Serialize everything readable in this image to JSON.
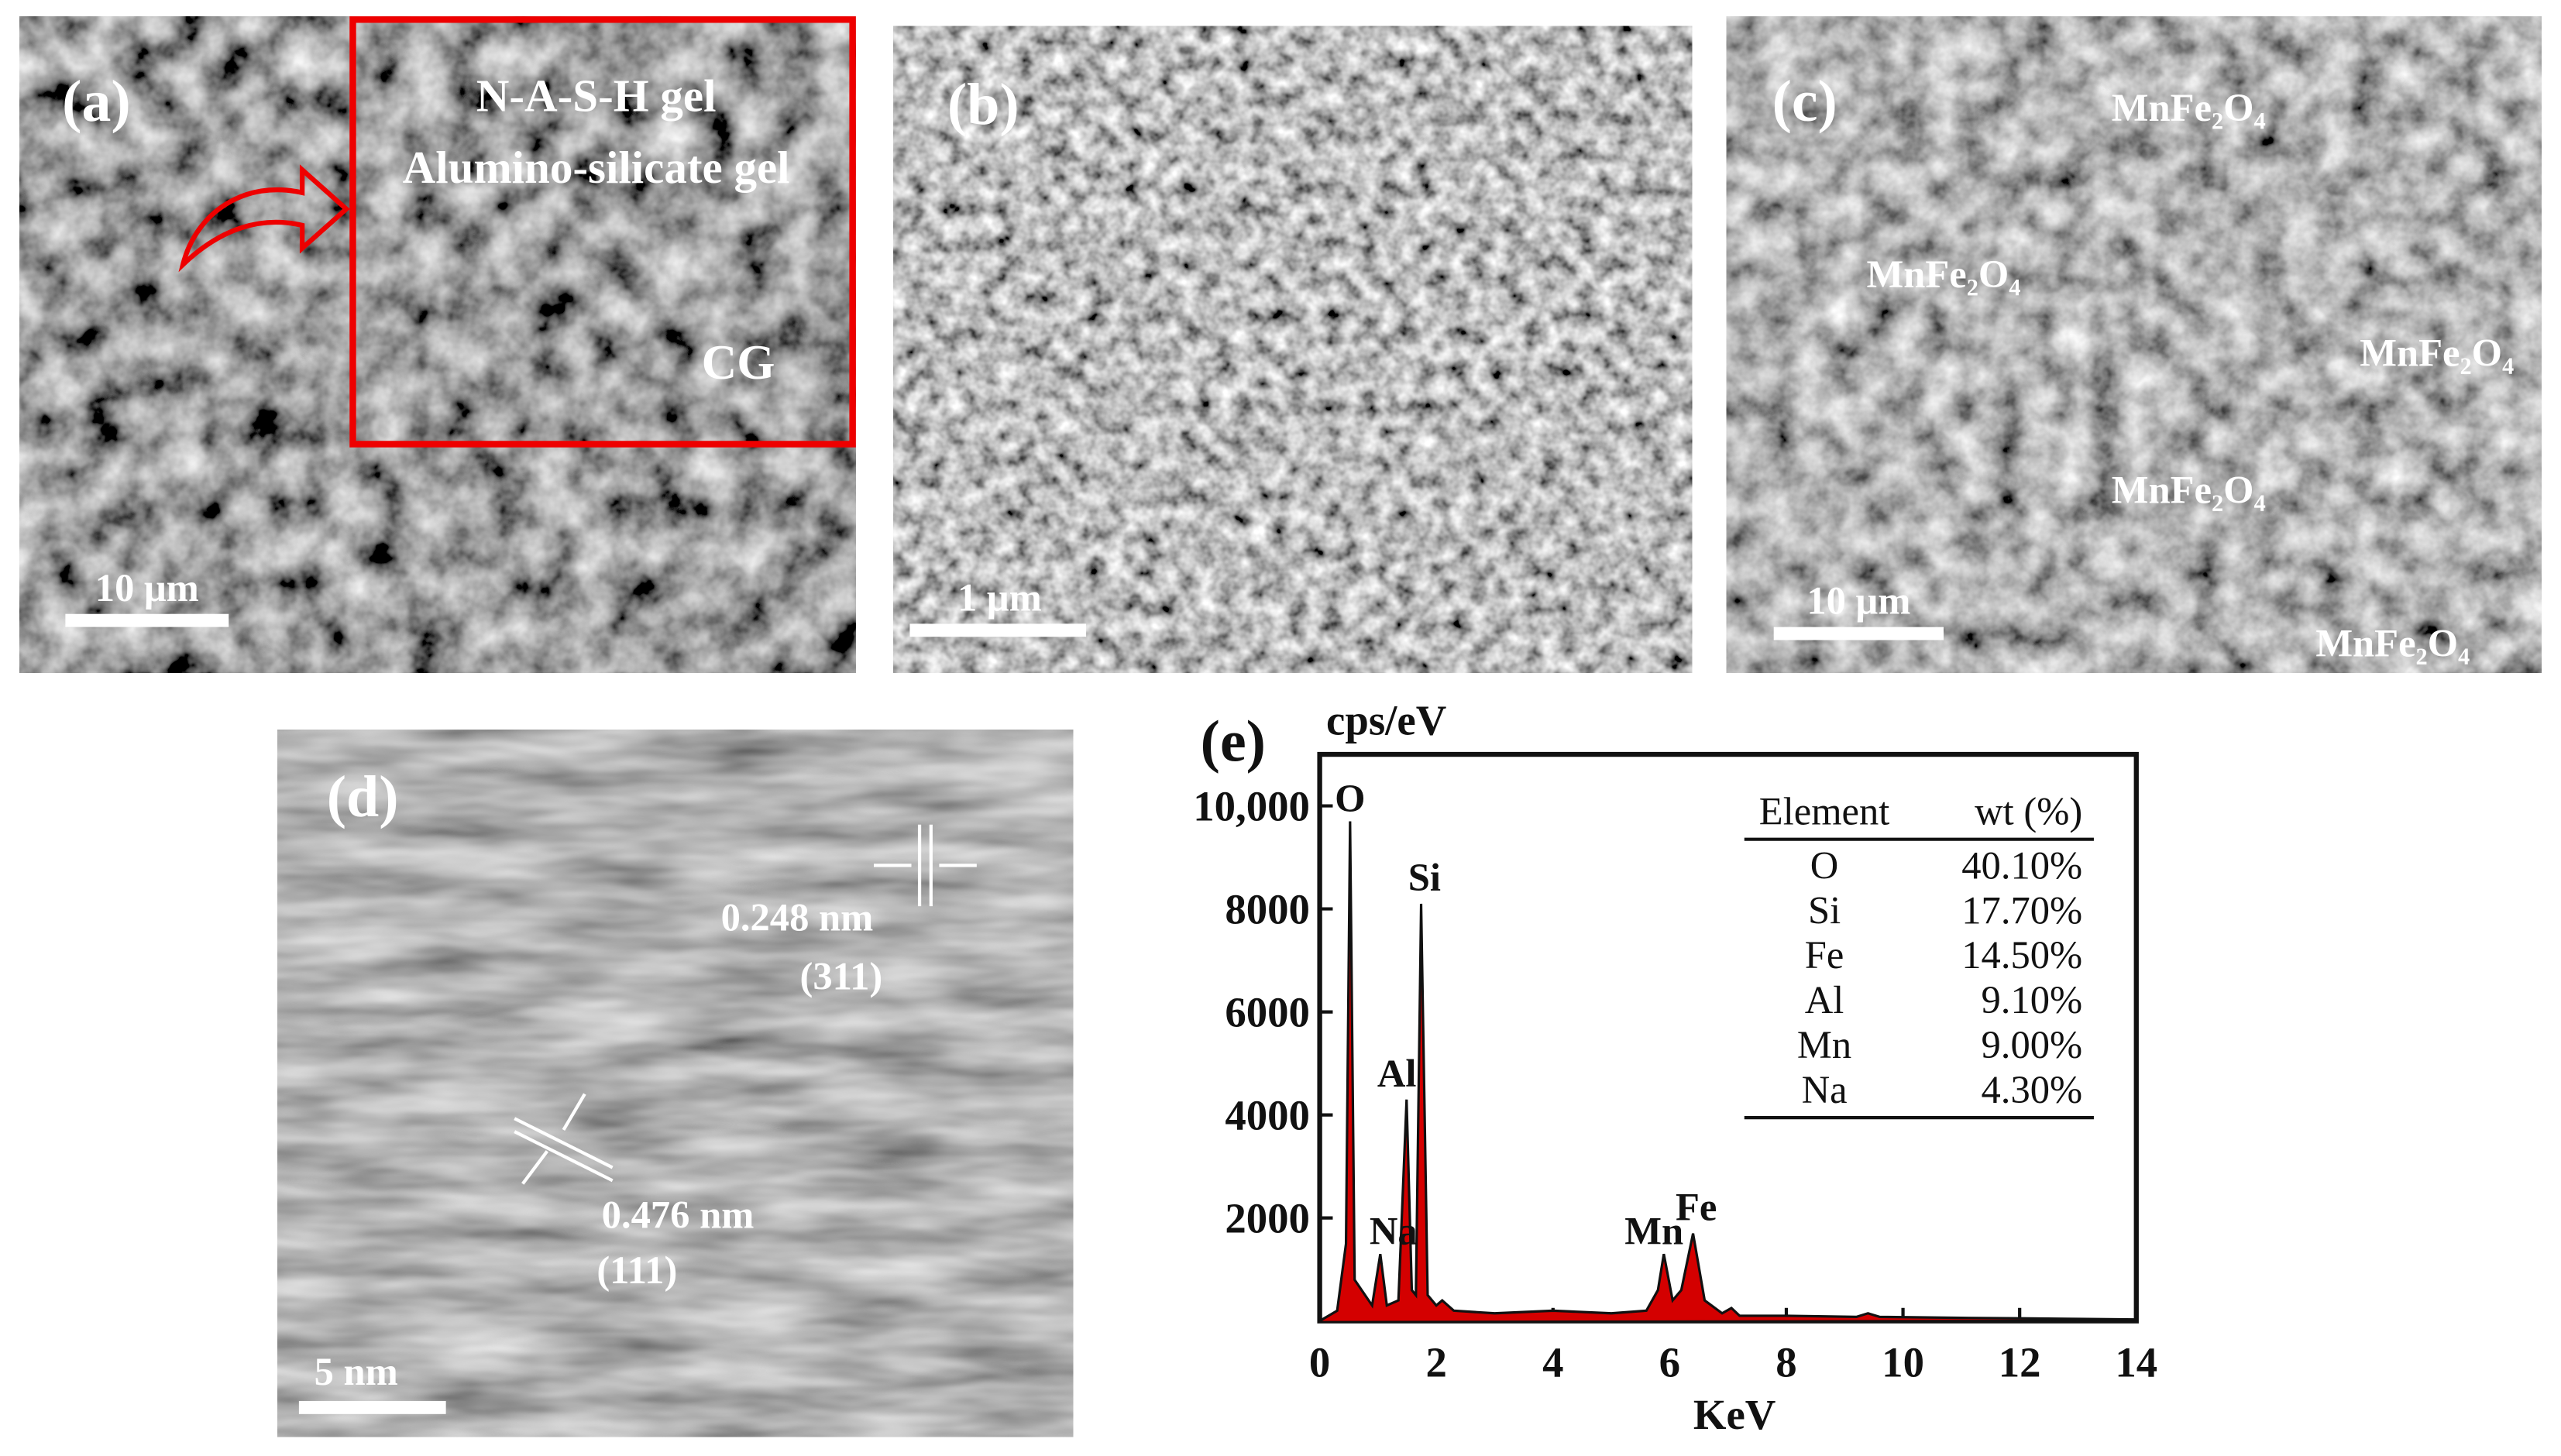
{
  "panels": {
    "a": {
      "label": "(a)",
      "gel_labels": [
        "N-A-S-H gel",
        "Alumino-silicate gel"
      ],
      "phase": "CG",
      "scale_bar": "10 μm"
    },
    "b": {
      "label": "(b)",
      "scale_bar": "1 μm"
    },
    "c": {
      "label": "(c)",
      "phases": [
        "MnFe₂O₄",
        "MnFe₂O₄",
        "MnFe₂O₄",
        "MnFe₂O₄",
        "MnFe₂O₄"
      ],
      "scale_bar": "10 μm"
    },
    "d": {
      "label": "(d)",
      "fringes": [
        {
          "spacing": "0.248 nm",
          "plane": "(311)"
        },
        {
          "spacing": "0.476 nm",
          "plane": "(111)"
        }
      ],
      "scale_bar": "5 nm"
    }
  },
  "chart_data": {
    "type": "line",
    "label": "(e)",
    "y_label": "cps/eV",
    "x_label": "KeV",
    "color": "#d40000",
    "x": [
      0,
      0.3,
      0.45,
      0.52,
      0.6,
      0.9,
      1.04,
      1.15,
      1.35,
      1.49,
      1.58,
      1.65,
      1.74,
      1.85,
      2.0,
      2.1,
      2.3,
      3,
      4,
      5,
      5.6,
      5.8,
      5.9,
      6.05,
      6.2,
      6.4,
      6.6,
      6.9,
      7.06,
      7.2,
      8,
      9.2,
      9.4,
      9.6,
      11,
      12,
      13,
      14
    ],
    "values": [
      0,
      200,
      1500,
      9700,
      800,
      300,
      1300,
      300,
      400,
      4300,
      600,
      500,
      8100,
      500,
      300,
      400,
      200,
      150,
      200,
      150,
      200,
      600,
      1300,
      400,
      600,
      1700,
      400,
      150,
      250,
      100,
      100,
      80,
      150,
      80,
      60,
      50,
      40,
      30
    ],
    "annotations": [
      "O",
      "Si",
      "Al",
      "Na",
      "Mn",
      "Fe"
    ],
    "xlim": [
      0,
      14
    ],
    "xticks": [
      0,
      2,
      4,
      6,
      8,
      10,
      12,
      14
    ],
    "ylim": [
      0,
      11000
    ],
    "yticks": [
      2000,
      4000,
      6000,
      8000,
      {
        "value": 10000,
        "label": "10,000"
      }
    ],
    "table": {
      "header": [
        "Element",
        "wt (%)"
      ],
      "rows": [
        [
          "O",
          "40.10%"
        ],
        [
          "Si",
          "17.70%"
        ],
        [
          "Fe",
          "14.50%"
        ],
        [
          "Al",
          "9.10%"
        ],
        [
          "Mn",
          "9.00%"
        ],
        [
          "Na",
          "4.30%"
        ]
      ]
    }
  }
}
